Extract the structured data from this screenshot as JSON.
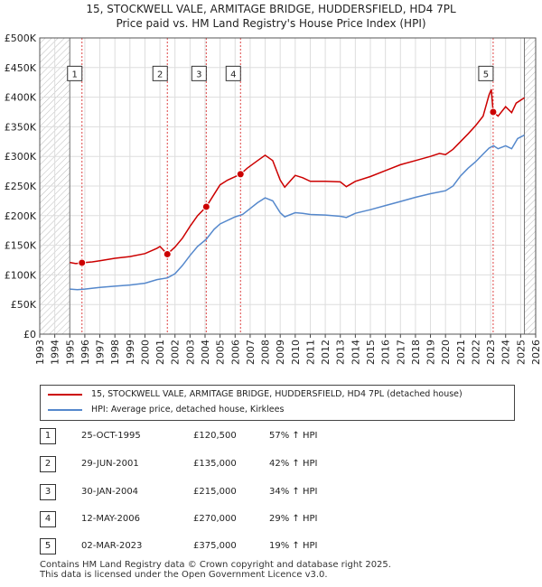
{
  "chart_data": {
    "type": "line",
    "title": "15, STOCKWELL VALE, ARMITAGE BRIDGE, HUDDERSFIELD, HD4 7PL",
    "subtitle": "Price paid vs. HM Land Registry's House Price Index (HPI)",
    "xlim": [
      1993,
      2026
    ],
    "ylim": [
      0,
      500000
    ],
    "x_ticks": [
      "1993",
      "1994",
      "1995",
      "1996",
      "1997",
      "1998",
      "1999",
      "2000",
      "2001",
      "2002",
      "2003",
      "2004",
      "2005",
      "2006",
      "2007",
      "2008",
      "2009",
      "2010",
      "2011",
      "2012",
      "2013",
      "2014",
      "2015",
      "2016",
      "2017",
      "2018",
      "2019",
      "2020",
      "2021",
      "2022",
      "2023",
      "2024",
      "2025",
      "2026"
    ],
    "y_ticks": [
      {
        "value": 0,
        "label": "£0"
      },
      {
        "value": 50000,
        "label": "£50K"
      },
      {
        "value": 100000,
        "label": "£100K"
      },
      {
        "value": 150000,
        "label": "£150K"
      },
      {
        "value": 200000,
        "label": "£200K"
      },
      {
        "value": 250000,
        "label": "£250K"
      },
      {
        "value": 300000,
        "label": "£300K"
      },
      {
        "value": 350000,
        "label": "£350K"
      },
      {
        "value": 400000,
        "label": "£400K"
      },
      {
        "value": 450000,
        "label": "£450K"
      },
      {
        "value": 500000,
        "label": "£500K"
      }
    ],
    "grid": true,
    "hatched_before": 1995.0,
    "hatched_after": 2025.25,
    "series": [
      {
        "name": "15, STOCKWELL VALE, ARMITAGE BRIDGE, HUDDERSFIELD, HD4 7PL (detached house)",
        "color": "#cc0000",
        "points": [
          [
            1995.0,
            121000
          ],
          [
            1995.4,
            119000
          ],
          [
            1995.81,
            120500
          ],
          [
            1996.5,
            122000
          ],
          [
            1997.0,
            124000
          ],
          [
            1998.0,
            128000
          ],
          [
            1999.0,
            131000
          ],
          [
            2000.0,
            136000
          ],
          [
            2000.8,
            145000
          ],
          [
            2001.0,
            148000
          ],
          [
            2001.49,
            135000
          ],
          [
            2002.0,
            147000
          ],
          [
            2002.5,
            162000
          ],
          [
            2003.0,
            182000
          ],
          [
            2003.5,
            200000
          ],
          [
            2004.08,
            215000
          ],
          [
            2004.6,
            236000
          ],
          [
            2005.0,
            252000
          ],
          [
            2005.5,
            260000
          ],
          [
            2006.36,
            270000
          ],
          [
            2006.8,
            280000
          ],
          [
            2007.5,
            293000
          ],
          [
            2008.0,
            302000
          ],
          [
            2008.5,
            293000
          ],
          [
            2009.0,
            260000
          ],
          [
            2009.3,
            248000
          ],
          [
            2010.0,
            268000
          ],
          [
            2010.5,
            264000
          ],
          [
            2011.0,
            258000
          ],
          [
            2012.0,
            258000
          ],
          [
            2013.0,
            257000
          ],
          [
            2013.4,
            249000
          ],
          [
            2014.0,
            258000
          ],
          [
            2015.0,
            266000
          ],
          [
            2016.0,
            276000
          ],
          [
            2017.0,
            286000
          ],
          [
            2018.0,
            293000
          ],
          [
            2019.0,
            300000
          ],
          [
            2019.6,
            305000
          ],
          [
            2020.0,
            303000
          ],
          [
            2020.5,
            312000
          ],
          [
            2021.0,
            325000
          ],
          [
            2021.5,
            338000
          ],
          [
            2022.0,
            352000
          ],
          [
            2022.5,
            368000
          ],
          [
            2022.9,
            404000
          ],
          [
            2023.05,
            413000
          ],
          [
            2023.17,
            375000
          ],
          [
            2023.5,
            368000
          ],
          [
            2024.0,
            384000
          ],
          [
            2024.4,
            374000
          ],
          [
            2024.7,
            390000
          ],
          [
            2025.25,
            399000
          ]
        ]
      },
      {
        "name": "HPI: Average price, detached house, Kirklees",
        "color": "#5588cc",
        "points": [
          [
            1995.0,
            76000
          ],
          [
            1995.5,
            75000
          ],
          [
            1996.0,
            76000
          ],
          [
            1997.0,
            79000
          ],
          [
            1998.0,
            81000
          ],
          [
            1999.0,
            83000
          ],
          [
            2000.0,
            86000
          ],
          [
            2000.8,
            92000
          ],
          [
            2001.5,
            95000
          ],
          [
            2002.0,
            102000
          ],
          [
            2002.5,
            116000
          ],
          [
            2003.0,
            133000
          ],
          [
            2003.5,
            148000
          ],
          [
            2004.08,
            160000
          ],
          [
            2004.6,
            177000
          ],
          [
            2005.0,
            186000
          ],
          [
            2006.0,
            198000
          ],
          [
            2006.5,
            202000
          ],
          [
            2007.0,
            212000
          ],
          [
            2007.5,
            222000
          ],
          [
            2008.0,
            230000
          ],
          [
            2008.5,
            225000
          ],
          [
            2009.0,
            205000
          ],
          [
            2009.3,
            198000
          ],
          [
            2010.0,
            205000
          ],
          [
            2010.5,
            204000
          ],
          [
            2011.0,
            202000
          ],
          [
            2012.0,
            201000
          ],
          [
            2013.0,
            199000
          ],
          [
            2013.4,
            197000
          ],
          [
            2014.0,
            204000
          ],
          [
            2015.0,
            210000
          ],
          [
            2016.0,
            217000
          ],
          [
            2017.0,
            224000
          ],
          [
            2018.0,
            231000
          ],
          [
            2019.0,
            237000
          ],
          [
            2020.0,
            242000
          ],
          [
            2020.5,
            250000
          ],
          [
            2021.0,
            267000
          ],
          [
            2021.5,
            280000
          ],
          [
            2022.0,
            291000
          ],
          [
            2022.5,
            304000
          ],
          [
            2022.9,
            314000
          ],
          [
            2023.2,
            318000
          ],
          [
            2023.5,
            313000
          ],
          [
            2024.0,
            318000
          ],
          [
            2024.4,
            313000
          ],
          [
            2024.8,
            330000
          ],
          [
            2025.25,
            336000
          ]
        ]
      }
    ],
    "sales": [
      {
        "label": "1",
        "x": 1995.81,
        "y": 120500,
        "box_y": 440000
      },
      {
        "label": "2",
        "x": 2001.49,
        "y": 135000,
        "box_y": 440000
      },
      {
        "label": "3",
        "x": 2004.08,
        "y": 215000,
        "box_y": 440000
      },
      {
        "label": "4",
        "x": 2006.36,
        "y": 270000,
        "box_y": 440000
      },
      {
        "label": "5",
        "x": 2023.17,
        "y": 375000,
        "box_y": 440000
      }
    ]
  },
  "legend": {
    "property_label": "15, STOCKWELL VALE, ARMITAGE BRIDGE, HUDDERSFIELD, HD4 7PL (detached house)",
    "hpi_label": "HPI: Average price, detached house, Kirklees",
    "property_color": "#cc0000",
    "hpi_color": "#5588cc"
  },
  "transactions": [
    {
      "num": "1",
      "date": "25-OCT-1995",
      "price": "£120,500",
      "hpi": "57% ↑ HPI"
    },
    {
      "num": "2",
      "date": "29-JUN-2001",
      "price": "£135,000",
      "hpi": "42% ↑ HPI"
    },
    {
      "num": "3",
      "date": "30-JAN-2004",
      "price": "£215,000",
      "hpi": "34% ↑ HPI"
    },
    {
      "num": "4",
      "date": "12-MAY-2006",
      "price": "£270,000",
      "hpi": "29% ↑ HPI"
    },
    {
      "num": "5",
      "date": "02-MAR-2023",
      "price": "£375,000",
      "hpi": "19% ↑ HPI"
    }
  ],
  "footer": {
    "line1": "Contains HM Land Registry data © Crown copyright and database right 2025.",
    "line2": "This data is licensed under the Open Government Licence v3.0."
  }
}
